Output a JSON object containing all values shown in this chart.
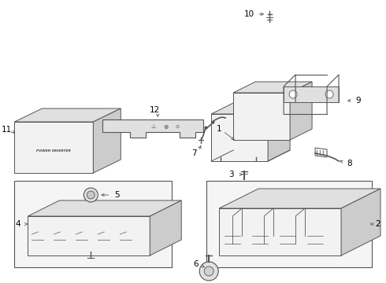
{
  "bg_color": "#ffffff",
  "line_color": "#555555",
  "label_color": "#000000",
  "fill_light": "#f2f2f2",
  "fill_mid": "#e0e0e0",
  "fill_dark": "#cccccc",
  "fill_box": "#ebebeb",
  "fig_width": 4.9,
  "fig_height": 3.6,
  "dpi": 100,
  "label_fontsize": 7.5,
  "ix": 0.45,
  "iy": 0.22
}
